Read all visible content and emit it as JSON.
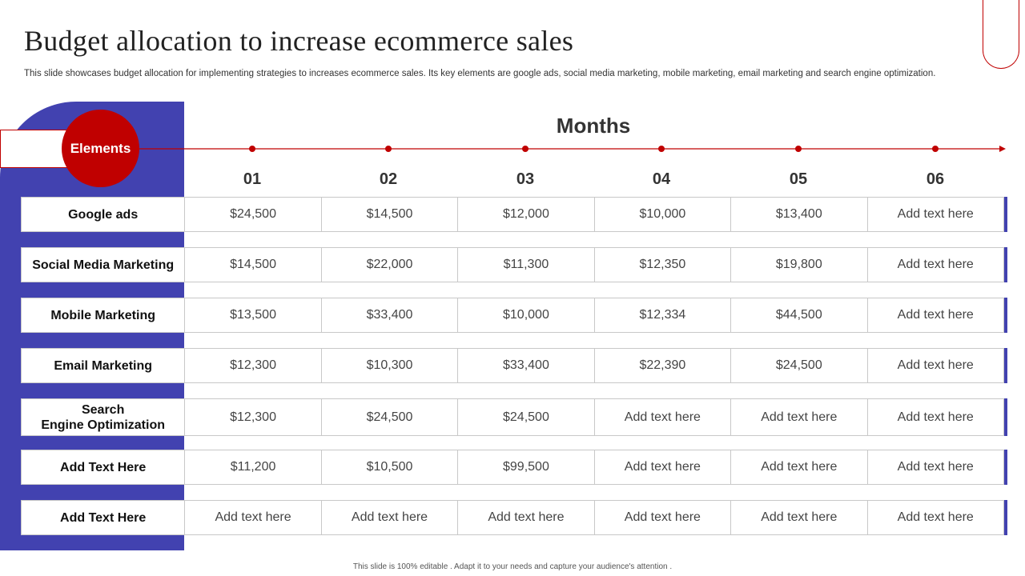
{
  "title": "Budget allocation to increase ecommerce sales",
  "subtitle": "This slide showcases budget allocation for implementing strategies to increases ecommerce sales. Its key elements are google ads, social media marketing, mobile marketing, email marketing and search engine optimization.",
  "elements_label": "Elements",
  "months_label": "Months",
  "months": [
    "01",
    "02",
    "03",
    "04",
    "05",
    "06"
  ],
  "rows": [
    {
      "label": "Google ads",
      "values": [
        "$24,500",
        "$14,500",
        "$12,000",
        "$10,000",
        "$13,400",
        "Add text here"
      ]
    },
    {
      "label": "Social Media Marketing",
      "values": [
        "$14,500",
        "$22,000",
        "$11,300",
        "$12,350",
        "$19,800",
        "Add text here"
      ]
    },
    {
      "label": "Mobile Marketing",
      "values": [
        "$13,500",
        "$33,400",
        "$10,000",
        "$12,334",
        "$44,500",
        "Add text here"
      ]
    },
    {
      "label": "Email Marketing",
      "values": [
        "$12,300",
        "$10,300",
        "$33,400",
        "$22,390",
        "$24,500",
        "Add text here"
      ]
    },
    {
      "label": "Search\nEngine Optimization",
      "values": [
        "$12,300",
        "$24,500",
        "$24,500",
        "Add text here",
        "Add text here",
        "Add text here"
      ]
    },
    {
      "label": "Add Text Here",
      "values": [
        "$11,200",
        "$10,500",
        "$99,500",
        "Add text here",
        "Add text here",
        "Add text here"
      ]
    },
    {
      "label": "Add Text Here",
      "values": [
        "Add text here",
        "Add text here",
        "Add text here",
        "Add text here",
        "Add text here",
        "Add text here"
      ]
    }
  ],
  "footer": "This slide is 100% editable . Adapt it to your needs and capture your audience's attention .",
  "colors": {
    "accent_red": "#c00000",
    "panel_blue": "#4242b0"
  }
}
